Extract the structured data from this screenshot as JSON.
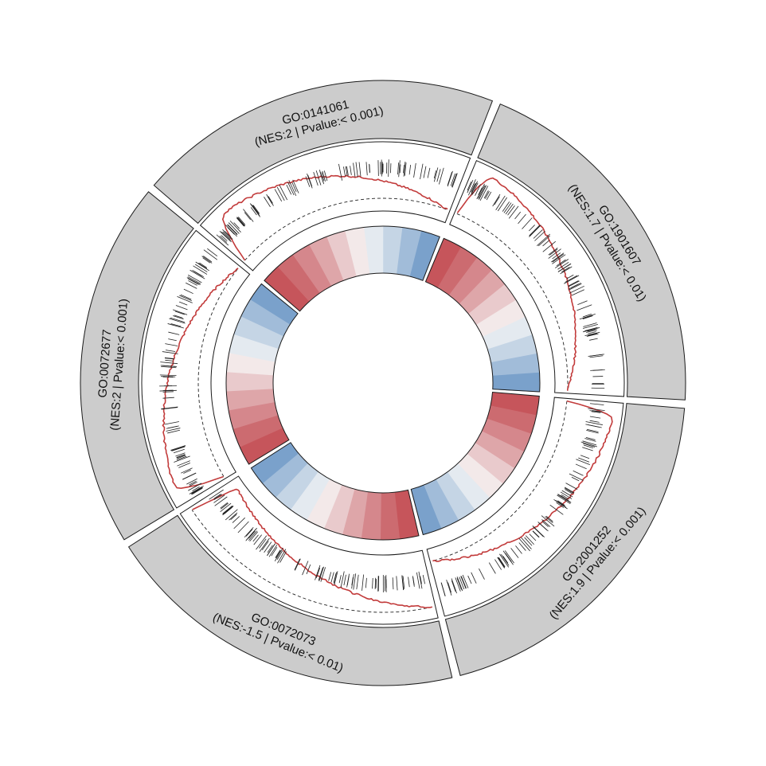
{
  "chart_data": {
    "type": "circular-gsea",
    "title": "",
    "sectors": [
      {
        "id": "GO:2001252",
        "label_id": "GO:2001252",
        "label_stats": "(NES:1.9 | Pvalue:< 0.001)",
        "nes": 1.9,
        "pvalue": "< 0.001",
        "direction": "positive",
        "peak_index": 0.05,
        "hit_density": 0.6
      },
      {
        "id": "GO:0072073",
        "label_id": "GO:0072073",
        "label_stats": "(NES:-1.5 | Pvalue:< 0.01)",
        "nes": -1.5,
        "pvalue": "< 0.01",
        "direction": "negative",
        "peak_index": 0.96,
        "hit_density": 0.55
      },
      {
        "id": "GO:0072677",
        "label_id": "GO:0072677",
        "label_stats": "(NES:2 | Pvalue:< 0.001)",
        "nes": 2,
        "pvalue": "< 0.001",
        "direction": "positive",
        "peak_index": 0.06,
        "hit_density": 0.35
      },
      {
        "id": "GO:0141061",
        "label_id": "GO:0141061",
        "label_stats": "(NES:2 | Pvalue:< 0.001)",
        "nes": 2,
        "pvalue": "< 0.001",
        "direction": "positive",
        "peak_index": 0.08,
        "hit_density": 0.55
      },
      {
        "id": "GO:1901607",
        "label_id": "GO:1901607",
        "label_stats": "(NES:1.7 | Pvalue:< 0.01)",
        "nes": 1.7,
        "pvalue": "< 0.01",
        "direction": "positive",
        "peak_index": 0.07,
        "hit_density": 0.5
      }
    ],
    "heatmap": {
      "bins_per_sector": 10,
      "rank_values": [
        0.9,
        0.78,
        0.62,
        0.45,
        0.25,
        0.08,
        -0.12,
        -0.32,
        -0.55,
        -0.8
      ],
      "colors": {
        "high": "#c0434a",
        "mid": "#f7f7f7",
        "low": "#5b8cc0"
      }
    },
    "colors": {
      "outer_band": "#cccccc",
      "running_es": "#c23b3b",
      "hits": "#222222",
      "border": "#1a1a1a"
    }
  }
}
